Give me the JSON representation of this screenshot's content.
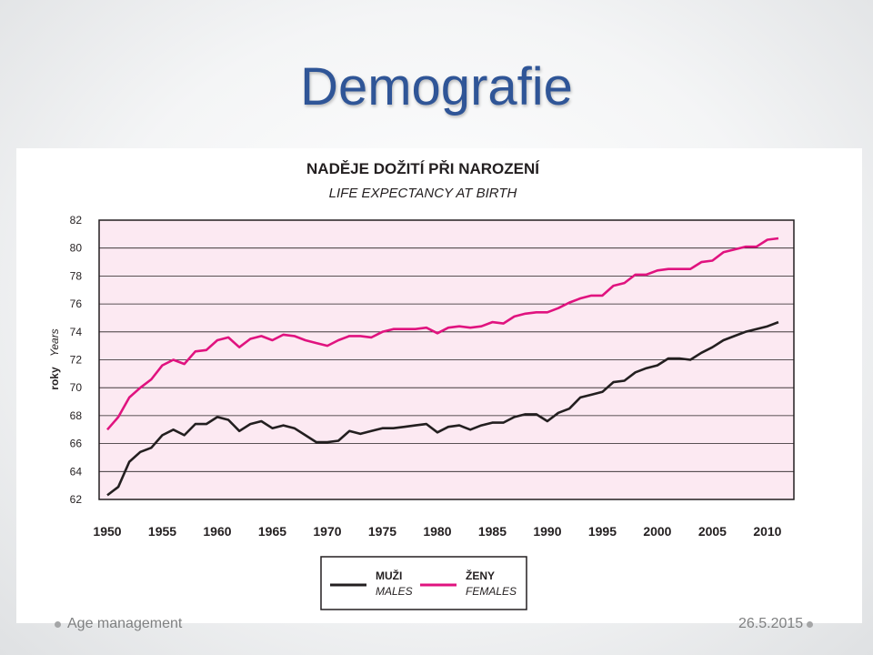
{
  "slide": {
    "title": "Demografie",
    "footer_left": "Age management",
    "footer_right": "26.5.2015"
  },
  "colors": {
    "title": "#2f5597",
    "plot_background": "#fce9f2",
    "males": "#231f20",
    "females": "#e0137f"
  },
  "chart_data": {
    "type": "line",
    "title": "NADĚJE DOŽITÍ PŘI NAROZENÍ",
    "subtitle": "LIFE EXPECTANCY AT BIRTH",
    "ylabel": "roky",
    "ylabel_en": "Years",
    "xlabel": "",
    "xlim": [
      1950,
      2011
    ],
    "ylim": [
      62,
      82
    ],
    "x_ticks": [
      "1950",
      "1955",
      "1960",
      "1965",
      "1970",
      "1975",
      "1980",
      "1985",
      "1990",
      "1995",
      "2000",
      "2005",
      "2010"
    ],
    "y_ticks": [
      "62",
      "64",
      "66",
      "68",
      "70",
      "72",
      "74",
      "76",
      "78",
      "80",
      "82"
    ],
    "grid": "horizontal",
    "legend_position": "bottom-center",
    "x": [
      1950,
      1951,
      1952,
      1953,
      1954,
      1955,
      1956,
      1957,
      1958,
      1959,
      1960,
      1961,
      1962,
      1963,
      1964,
      1965,
      1966,
      1967,
      1968,
      1969,
      1970,
      1971,
      1972,
      1973,
      1974,
      1975,
      1976,
      1977,
      1978,
      1979,
      1980,
      1981,
      1982,
      1983,
      1984,
      1985,
      1986,
      1987,
      1988,
      1989,
      1990,
      1991,
      1992,
      1993,
      1994,
      1995,
      1996,
      1997,
      1998,
      1999,
      2000,
      2001,
      2002,
      2003,
      2004,
      2005,
      2006,
      2007,
      2008,
      2009,
      2010,
      2011
    ],
    "series": [
      {
        "name": "MUŽI",
        "name_en": "MALES",
        "values": [
          62.3,
          62.9,
          64.7,
          65.4,
          65.7,
          66.6,
          67.0,
          66.6,
          67.4,
          67.4,
          67.9,
          67.7,
          66.9,
          67.4,
          67.6,
          67.1,
          67.3,
          67.1,
          66.6,
          66.1,
          66.1,
          66.2,
          66.9,
          66.7,
          66.9,
          67.1,
          67.1,
          67.2,
          67.3,
          67.4,
          66.8,
          67.2,
          67.3,
          67.0,
          67.3,
          67.5,
          67.5,
          67.9,
          68.1,
          68.1,
          67.6,
          68.2,
          68.5,
          69.3,
          69.5,
          69.7,
          70.4,
          70.5,
          71.1,
          71.4,
          71.6,
          72.1,
          72.1,
          72.0,
          72.5,
          72.9,
          73.4,
          73.7,
          74.0,
          74.2,
          74.4,
          74.7
        ]
      },
      {
        "name": "ŽENY",
        "name_en": "FEMALES",
        "values": [
          67.0,
          67.9,
          69.3,
          70.0,
          70.6,
          71.6,
          72.0,
          71.7,
          72.6,
          72.7,
          73.4,
          73.6,
          72.9,
          73.5,
          73.7,
          73.4,
          73.8,
          73.7,
          73.4,
          73.2,
          73.0,
          73.4,
          73.7,
          73.7,
          73.6,
          74.0,
          74.2,
          74.2,
          74.2,
          74.3,
          73.9,
          74.3,
          74.4,
          74.3,
          74.4,
          74.7,
          74.6,
          75.1,
          75.3,
          75.4,
          75.4,
          75.7,
          76.1,
          76.4,
          76.6,
          76.6,
          77.3,
          77.5,
          78.1,
          78.1,
          78.4,
          78.5,
          78.5,
          78.5,
          79.0,
          79.1,
          79.7,
          79.9,
          80.1,
          80.1,
          80.6,
          80.7
        ]
      }
    ]
  }
}
